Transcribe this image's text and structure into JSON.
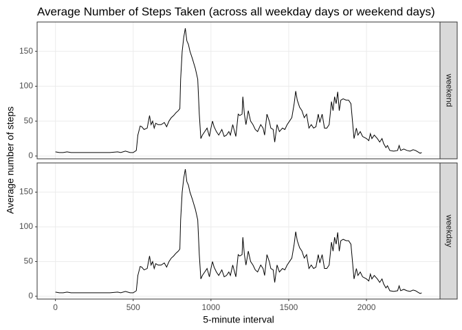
{
  "chart_data": {
    "type": "line",
    "title": "Average Number of Steps Taken (across all weekday days or weekend days)",
    "xlabel": "5-minute interval",
    "ylabel": "Average number of steps",
    "color": "#000000",
    "grid": true,
    "xlim": [
      -117.75,
      2472.75
    ],
    "xticks": [
      0,
      500,
      1000,
      1500,
      2000
    ],
    "ylim": [
      -4,
      192
    ],
    "yticks": [
      0,
      50,
      100,
      150
    ],
    "facets": [
      {
        "strip": "weekend",
        "x": [
          0,
          25,
          50,
          75,
          100,
          150,
          200,
          250,
          300,
          350,
          400,
          420,
          450,
          480,
          500,
          520,
          530,
          545,
          555,
          570,
          590,
          605,
          615,
          625,
          635,
          645,
          660,
          680,
          700,
          715,
          730,
          745,
          760,
          775,
          790,
          800,
          805,
          815,
          825,
          835,
          845,
          855,
          865,
          880,
          900,
          915,
          925,
          935,
          945,
          960,
          975,
          990,
          1000,
          1010,
          1020,
          1035,
          1050,
          1070,
          1085,
          1100,
          1115,
          1125,
          1140,
          1160,
          1175,
          1185,
          1200,
          1205,
          1215,
          1225,
          1240,
          1255,
          1270,
          1285,
          1300,
          1320,
          1335,
          1345,
          1360,
          1375,
          1385,
          1400,
          1410,
          1425,
          1440,
          1460,
          1475,
          1490,
          1505,
          1520,
          1535,
          1545,
          1555,
          1570,
          1585,
          1600,
          1615,
          1630,
          1645,
          1660,
          1675,
          1690,
          1700,
          1715,
          1730,
          1745,
          1760,
          1775,
          1785,
          1795,
          1805,
          1815,
          1825,
          1835,
          1850,
          1870,
          1885,
          1900,
          1910,
          1920,
          1935,
          1945,
          1960,
          1975,
          2000,
          2015,
          2025,
          2035,
          2050,
          2070,
          2085,
          2100,
          2110,
          2125,
          2135,
          2150,
          2175,
          2200,
          2210,
          2220,
          2240,
          2260,
          2280,
          2300,
          2315,
          2330,
          2345,
          2355
        ],
        "values": [
          6,
          5,
          5,
          6,
          5,
          5,
          5,
          5,
          5,
          5,
          6,
          5,
          7,
          5,
          5,
          8,
          30,
          43,
          42,
          38,
          40,
          58,
          45,
          50,
          40,
          47,
          45,
          45,
          48,
          42,
          50,
          55,
          58,
          62,
          65,
          68,
          110,
          150,
          170,
          183,
          165,
          160,
          150,
          140,
          125,
          110,
          60,
          25,
          30,
          35,
          40,
          28,
          40,
          50,
          42,
          35,
          30,
          38,
          28,
          30,
          35,
          30,
          45,
          28,
          60,
          58,
          60,
          85,
          60,
          45,
          65,
          50,
          45,
          38,
          35,
          45,
          40,
          30,
          60,
          50,
          40,
          38,
          20,
          45,
          35,
          40,
          38,
          45,
          50,
          55,
          75,
          93,
          80,
          70,
          65,
          55,
          60,
          40,
          45,
          40,
          42,
          60,
          48,
          60,
          40,
          40,
          45,
          78,
          65,
          85,
          75,
          92,
          65,
          80,
          82,
          80,
          80,
          75,
          50,
          25,
          40,
          30,
          35,
          28,
          25,
          22,
          32,
          25,
          30,
          25,
          20,
          25,
          18,
          12,
          15,
          8,
          7,
          8,
          15,
          8,
          10,
          8,
          7,
          9,
          8,
          6,
          4,
          5
        ]
      },
      {
        "strip": "weekday",
        "x": [
          0,
          25,
          50,
          75,
          100,
          150,
          200,
          250,
          300,
          350,
          400,
          420,
          450,
          480,
          500,
          520,
          530,
          545,
          555,
          570,
          590,
          605,
          615,
          625,
          635,
          645,
          660,
          680,
          700,
          715,
          730,
          745,
          760,
          775,
          790,
          800,
          805,
          815,
          825,
          835,
          845,
          855,
          865,
          880,
          900,
          915,
          925,
          935,
          945,
          960,
          975,
          990,
          1000,
          1010,
          1020,
          1035,
          1050,
          1070,
          1085,
          1100,
          1115,
          1125,
          1140,
          1160,
          1175,
          1185,
          1200,
          1205,
          1215,
          1225,
          1240,
          1255,
          1270,
          1285,
          1300,
          1320,
          1335,
          1345,
          1360,
          1375,
          1385,
          1400,
          1410,
          1425,
          1440,
          1460,
          1475,
          1490,
          1505,
          1520,
          1535,
          1545,
          1555,
          1570,
          1585,
          1600,
          1615,
          1630,
          1645,
          1660,
          1675,
          1690,
          1700,
          1715,
          1730,
          1745,
          1760,
          1775,
          1785,
          1795,
          1805,
          1815,
          1825,
          1835,
          1850,
          1870,
          1885,
          1900,
          1910,
          1920,
          1935,
          1945,
          1960,
          1975,
          2000,
          2015,
          2025,
          2035,
          2050,
          2070,
          2085,
          2100,
          2110,
          2125,
          2135,
          2150,
          2175,
          2200,
          2210,
          2220,
          2240,
          2260,
          2280,
          2300,
          2315,
          2330,
          2345,
          2355
        ],
        "values": [
          6,
          5,
          5,
          6,
          5,
          5,
          5,
          5,
          5,
          5,
          6,
          5,
          7,
          5,
          5,
          8,
          30,
          43,
          42,
          38,
          40,
          58,
          45,
          50,
          40,
          47,
          45,
          45,
          48,
          42,
          50,
          55,
          58,
          62,
          65,
          68,
          110,
          150,
          170,
          183,
          165,
          160,
          150,
          140,
          125,
          110,
          60,
          25,
          30,
          35,
          40,
          28,
          40,
          50,
          42,
          35,
          30,
          38,
          28,
          30,
          35,
          30,
          45,
          28,
          60,
          58,
          60,
          85,
          60,
          45,
          65,
          50,
          45,
          38,
          35,
          45,
          40,
          30,
          60,
          50,
          40,
          38,
          20,
          45,
          35,
          40,
          38,
          45,
          50,
          55,
          75,
          93,
          80,
          70,
          65,
          55,
          60,
          40,
          45,
          40,
          42,
          60,
          48,
          60,
          40,
          40,
          45,
          78,
          65,
          85,
          75,
          92,
          65,
          80,
          82,
          80,
          80,
          75,
          50,
          25,
          40,
          30,
          35,
          28,
          25,
          22,
          32,
          25,
          30,
          25,
          20,
          25,
          18,
          12,
          15,
          8,
          7,
          8,
          15,
          8,
          10,
          8,
          7,
          9,
          8,
          6,
          4,
          5
        ]
      }
    ]
  }
}
